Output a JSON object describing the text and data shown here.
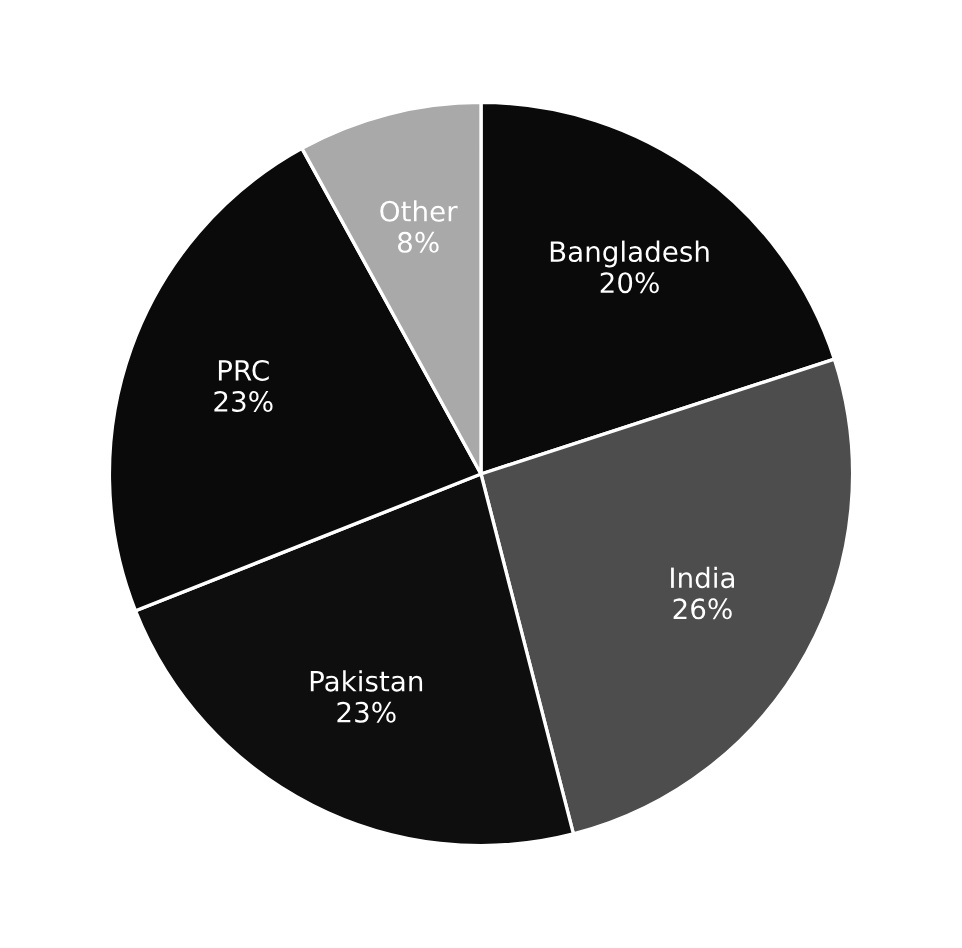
{
  "chart_data": {
    "type": "pie",
    "categories": [
      "Bangladesh",
      "India",
      "Pakistan",
      "PRC",
      "Other"
    ],
    "values": [
      20,
      26,
      23,
      23,
      8
    ],
    "colors": [
      "#0a0a0a",
      "#4d4d4d",
      "#0e0e0e",
      "#0a0a0a",
      "#a9a9a9"
    ],
    "value_labels": [
      "20%",
      "26%",
      "23%",
      "23%",
      "8%"
    ]
  }
}
